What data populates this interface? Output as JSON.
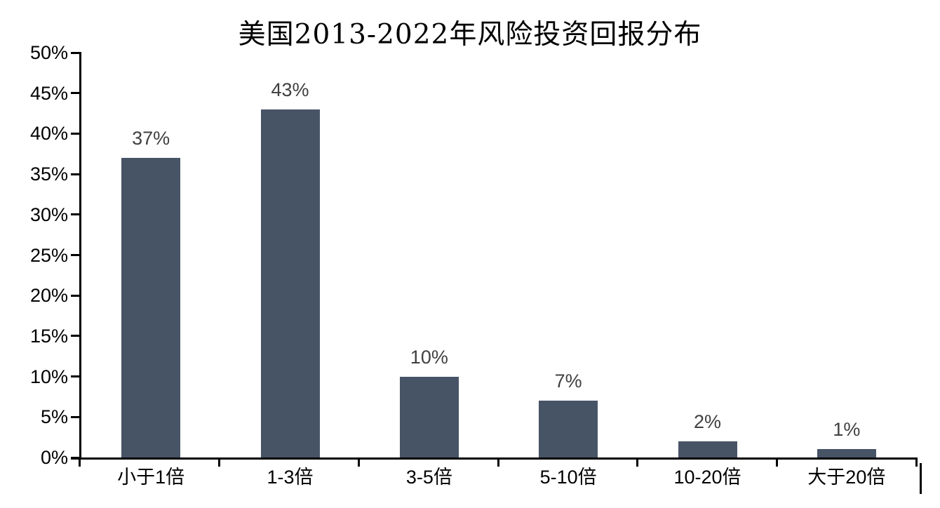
{
  "chart_data": {
    "type": "bar",
    "title": "美国2013-2022年风险投资回报分布",
    "categories": [
      "小于1倍",
      "1-3倍",
      "3-5倍",
      "5-10倍",
      "10-20倍",
      "大于20倍"
    ],
    "values": [
      37,
      43,
      10,
      7,
      2,
      1
    ],
    "data_labels": [
      "37%",
      "43%",
      "10%",
      "7%",
      "2%",
      "1%"
    ],
    "y_tick_labels": [
      "0%",
      "5%",
      "10%",
      "15%",
      "20%",
      "25%",
      "30%",
      "35%",
      "40%",
      "45%",
      "50%"
    ],
    "ylim": [
      0,
      50
    ],
    "xlabel": "",
    "ylabel": "",
    "grid": false,
    "legend": false,
    "bar_color": "#475466",
    "data_label_color": "#404040",
    "axis_color": "#000000",
    "text_color": "#000000"
  }
}
